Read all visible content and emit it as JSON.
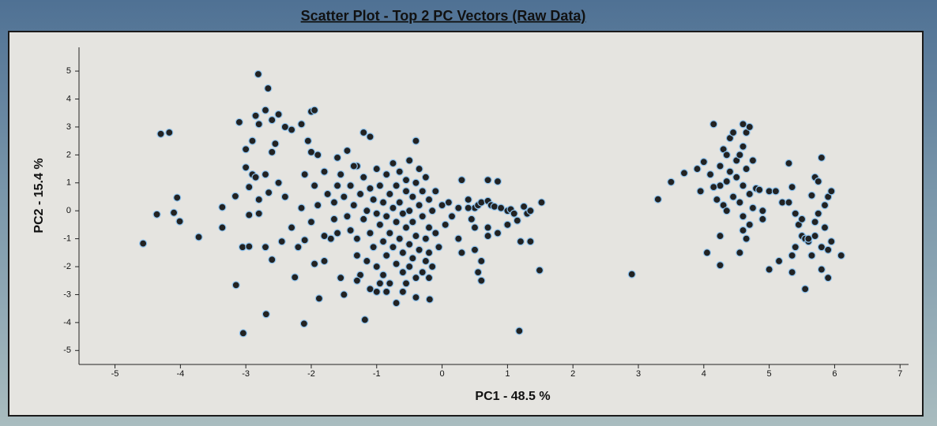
{
  "chart_data": {
    "type": "scatter",
    "title": "Scatter Plot - Top 2 PC Vectors (Raw Data)",
    "x_label": "PC1 - 48.5 %",
    "y_label": "PC2 - 15.4 %",
    "color": "#222222",
    "stroke": "#8ec3ee",
    "xlim": [
      -5.55,
      7.13
    ],
    "ylim": [
      -5.5,
      5.85
    ],
    "xticks": [
      -5,
      -4,
      -3,
      -2,
      -1,
      0,
      1,
      2,
      3,
      4,
      5,
      6,
      7
    ],
    "yticks": [
      -5,
      -4,
      -3,
      -2,
      -1,
      0,
      1,
      2,
      3,
      4,
      5
    ],
    "x": [
      -4.57,
      -4.3,
      -4.17,
      -4.36,
      -4.1,
      -4.05,
      -4.01,
      -3.72,
      -3.36,
      -3.36,
      -3.16,
      -3.15,
      -3.04,
      -3.1,
      -2.81,
      -2.66,
      -2.69,
      -2.11,
      -1.88,
      -2.25,
      -1.18,
      1.18,
      -0.19,
      1.49,
      2.9,
      3.3,
      3.5,
      1.52,
      -3.0,
      -2.9,
      -2.8,
      -2.85,
      -2.7,
      -2.6,
      -2.5,
      -2.4,
      -2.9,
      -3.0,
      -2.85,
      -2.7,
      -2.65,
      -2.8,
      -2.95,
      -2.95,
      -2.8,
      -3.05,
      -2.95,
      -2.7,
      -2.6,
      -2.5,
      -2.4,
      -2.3,
      -2.2,
      -2.15,
      -2.1,
      -2.05,
      -2.0,
      -1.95,
      -2.0,
      -1.9,
      -2.6,
      -2.3,
      -2.15,
      -1.95,
      -1.8,
      -1.8,
      -1.9,
      -1.95,
      -1.8,
      -1.75,
      -1.65,
      -1.6,
      -1.45,
      -1.3,
      -1.55,
      -1.5,
      -1.2,
      -1.1,
      -2.0,
      -2.1,
      -1.7,
      -2.45,
      -2.55,
      -1.5,
      -1.45,
      -1.4,
      -1.4,
      -1.35,
      -1.3,
      -1.3,
      -1.25,
      -1.2,
      -1.2,
      -1.15,
      -1.15,
      -1.1,
      -1.1,
      -1.05,
      -1.05,
      -1.0,
      -1.0,
      -1.0,
      -0.95,
      -0.95,
      -0.9,
      -0.9,
      -0.9,
      -0.85,
      -0.85,
      -0.85,
      -0.8,
      -0.8,
      -0.8,
      -0.75,
      -0.75,
      -0.75,
      -0.7,
      -0.7,
      -0.7,
      -0.65,
      -0.65,
      -0.65,
      -0.6,
      -0.6,
      -0.6,
      -0.55,
      -0.55,
      -0.55,
      -0.5,
      -0.5,
      -0.5,
      -0.5,
      -0.45,
      -0.45,
      -0.45,
      -0.4,
      -0.4,
      -0.4,
      -0.4,
      -0.35,
      -0.35,
      -0.35,
      -0.3,
      -0.3,
      -0.3,
      -0.25,
      -0.25,
      -0.25,
      -0.2,
      -0.2,
      -0.2,
      -0.15,
      -0.15,
      -0.1,
      -0.1,
      -0.05,
      0.0,
      0.05,
      0.1,
      0.15,
      -1.6,
      -1.6,
      -1.65,
      -1.55,
      -1.35,
      -1.25,
      -1.3,
      -0.95,
      -0.85,
      -0.7,
      -0.6,
      -0.4,
      -1.1,
      -1.0,
      -0.55,
      -0.2,
      0.25,
      0.3,
      0.4,
      0.5,
      0.55,
      0.6,
      0.7,
      0.75,
      0.8,
      0.7,
      0.85,
      0.9,
      1.0,
      1.05,
      1.1,
      1.15,
      1.25,
      1.3,
      1.35,
      0.25,
      0.3,
      0.5,
      0.5,
      0.6,
      0.55,
      0.6,
      0.7,
      0.7,
      0.85,
      1.0,
      1.2,
      1.35,
      0.4,
      0.45,
      3.7,
      3.9,
      3.95,
      4.0,
      4.1,
      4.15,
      4.2,
      4.25,
      4.25,
      4.3,
      4.35,
      4.3,
      4.4,
      4.4,
      4.45,
      4.5,
      4.55,
      4.55,
      4.6,
      4.6,
      4.65,
      4.65,
      4.7,
      4.7,
      4.75,
      4.75,
      4.8,
      4.6,
      4.6,
      4.65,
      4.7,
      4.55,
      4.25,
      4.25,
      4.05,
      4.35,
      4.9,
      4.85,
      4.9,
      4.15,
      4.45,
      4.5,
      4.35,
      4.6,
      5.0,
      5.1,
      5.2,
      5.3,
      5.3,
      5.35,
      5.4,
      5.45,
      5.5,
      5.55,
      5.5,
      5.55,
      5.4,
      5.35,
      5.35,
      5.0,
      5.15,
      5.65,
      5.7,
      5.75,
      5.8,
      5.75,
      5.7,
      5.7,
      5.65,
      5.8,
      5.8,
      5.85,
      5.85,
      5.9,
      5.95,
      5.9,
      5.95,
      5.9,
      6.1,
      5.6,
      5.6
    ],
    "values": [
      -1.17,
      2.75,
      2.8,
      -0.13,
      -0.07,
      0.47,
      -0.38,
      -0.94,
      0.13,
      -0.6,
      0.52,
      -2.66,
      -4.38,
      3.17,
      4.89,
      4.38,
      -3.7,
      -4.04,
      -3.14,
      -2.38,
      -3.9,
      -4.3,
      -3.17,
      -2.13,
      -2.27,
      0.41,
      1.03,
      0.3,
      2.2,
      2.5,
      3.1,
      3.4,
      3.6,
      3.25,
      3.45,
      3.0,
      1.3,
      1.55,
      1.2,
      1.3,
      0.65,
      0.4,
      0.85,
      -0.15,
      -0.1,
      -1.3,
      -1.28,
      -1.3,
      -1.75,
      1.0,
      0.5,
      -0.6,
      -1.3,
      0.1,
      1.3,
      2.5,
      3.55,
      3.6,
      2.1,
      2.0,
      2.1,
      2.9,
      3.1,
      -1.9,
      -1.8,
      -0.9,
      0.2,
      0.9,
      1.4,
      0.6,
      -0.3,
      1.9,
      2.15,
      1.6,
      -2.4,
      -3.0,
      2.8,
      2.65,
      -0.4,
      -1.05,
      -1.0,
      -1.1,
      2.4,
      0.5,
      -0.2,
      -0.7,
      0.9,
      0.2,
      -1.0,
      -1.6,
      0.6,
      -0.3,
      1.2,
      0.0,
      -1.8,
      0.8,
      -0.8,
      0.4,
      -1.3,
      1.5,
      -0.1,
      -2.0,
      0.9,
      -0.5,
      0.3,
      -1.1,
      -2.3,
      1.3,
      -0.2,
      -1.6,
      0.6,
      -0.8,
      -2.6,
      0.1,
      -1.3,
      1.7,
      -0.4,
      0.9,
      -1.9,
      0.3,
      -1.0,
      1.4,
      -0.1,
      -1.5,
      -2.2,
      0.7,
      -0.6,
      1.1,
      0.0,
      -1.2,
      -2.0,
      1.8,
      0.5,
      -0.4,
      -1.7,
      1.0,
      -0.9,
      -2.4,
      2.5,
      0.2,
      -1.4,
      1.5,
      -0.2,
      -2.2,
      0.7,
      -1.0,
      -1.8,
      1.2,
      0.4,
      -0.6,
      -1.5,
      0.0,
      -2.0,
      0.7,
      -0.8,
      -1.3,
      0.2,
      -0.5,
      0.3,
      -0.2,
      0.9,
      -0.8,
      0.3,
      1.3,
      1.6,
      -2.3,
      -2.5,
      -2.6,
      -2.9,
      -3.3,
      -2.9,
      -3.1,
      -2.8,
      -2.9,
      -2.6,
      -2.4,
      0.1,
      1.1,
      0.4,
      0.1,
      0.2,
      0.3,
      0.35,
      0.2,
      0.15,
      1.1,
      1.05,
      0.1,
      0.0,
      0.05,
      -0.1,
      -0.35,
      0.15,
      -0.1,
      0.0,
      -1.0,
      -1.5,
      -1.4,
      -0.6,
      -1.8,
      -2.2,
      -2.5,
      -0.6,
      -0.9,
      -0.8,
      -0.5,
      -1.1,
      -1.1,
      0.1,
      -0.3,
      1.35,
      1.5,
      0.7,
      1.75,
      1.3,
      3.1,
      0.4,
      0.9,
      1.6,
      2.2,
      1.05,
      0.2,
      2.6,
      1.4,
      0.5,
      1.8,
      2.0,
      0.3,
      3.1,
      0.9,
      1.5,
      2.8,
      3.0,
      0.6,
      1.8,
      0.1,
      0.8,
      -0.2,
      -0.7,
      -1.0,
      -0.5,
      -1.5,
      -0.9,
      -1.95,
      -1.5,
      0.0,
      0.0,
      0.75,
      -0.3,
      0.85,
      2.8,
      1.2,
      2.0,
      2.3,
      0.7,
      0.7,
      0.3,
      0.3,
      1.7,
      0.85,
      -0.1,
      -0.5,
      -0.9,
      -1.0,
      -0.3,
      -2.8,
      -1.3,
      -1.6,
      -2.2,
      -2.1,
      -1.8,
      0.55,
      1.2,
      1.05,
      1.9,
      -0.1,
      -0.4,
      -0.9,
      -1.6,
      -1.3,
      -2.1,
      -0.6,
      0.2,
      0.5,
      0.7,
      -1.4,
      -1.1,
      -2.4,
      -1.6,
      -1.1,
      -1.0
    ]
  }
}
